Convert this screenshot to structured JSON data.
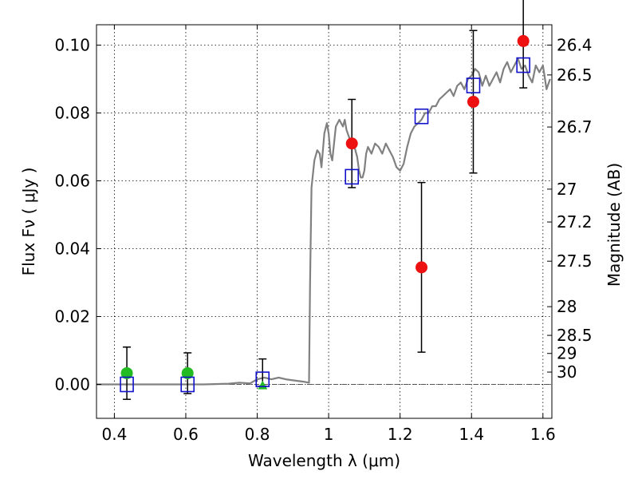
{
  "chart_data": {
    "type": "scatter",
    "xlabel": "Wavelength  λ (μm)",
    "ylabel": "Flux  Fν  ( μJy )",
    "y2label": "Magnitude (AB)",
    "xlim": [
      0.35,
      1.625
    ],
    "ylim": [
      -0.01,
      0.106
    ],
    "grid": true,
    "x_ticks": [
      {
        "value": 0.4,
        "label": "0.4"
      },
      {
        "value": 0.6,
        "label": "0.6"
      },
      {
        "value": 0.8,
        "label": "0.8"
      },
      {
        "value": 1.0,
        "label": "1"
      },
      {
        "value": 1.2,
        "label": "1.2"
      },
      {
        "value": 1.4,
        "label": "1.4"
      },
      {
        "value": 1.6,
        "label": "1.6"
      }
    ],
    "y_ticks": [
      {
        "value": 0.0,
        "label": "0.00"
      },
      {
        "value": 0.02,
        "label": "0.02"
      },
      {
        "value": 0.04,
        "label": "0.04"
      },
      {
        "value": 0.06,
        "label": "0.06"
      },
      {
        "value": 0.08,
        "label": "0.08"
      },
      {
        "value": 0.1,
        "label": "0.10"
      }
    ],
    "mag_ticks": [
      {
        "value": 26.4,
        "label": "26.4"
      },
      {
        "value": 26.5,
        "label": "26.5"
      },
      {
        "value": 26.7,
        "label": "26.7"
      },
      {
        "value": 27.0,
        "label": "27"
      },
      {
        "value": 27.2,
        "label": "27.2"
      },
      {
        "value": 27.5,
        "label": "27.5"
      },
      {
        "value": 28.0,
        "label": "28"
      },
      {
        "value": 28.5,
        "label": "28.5"
      },
      {
        "value": 29.0,
        "label": "29"
      },
      {
        "value": 30.0,
        "label": "30"
      }
    ],
    "colors": {
      "spectrum": "#808080",
      "red": "#ee1111",
      "green": "#22bb22",
      "model": "#1111cc",
      "errorbar": "#000000",
      "zero_line": "#555555"
    },
    "spectrum": [
      [
        0.35,
        0.0
      ],
      [
        0.45,
        0.0
      ],
      [
        0.55,
        0.0
      ],
      [
        0.65,
        0.0
      ],
      [
        0.72,
        0.0002
      ],
      [
        0.75,
        0.0005
      ],
      [
        0.78,
        0.0003
      ],
      [
        0.8,
        0.0015
      ],
      [
        0.82,
        0.002
      ],
      [
        0.84,
        0.0015
      ],
      [
        0.86,
        0.002
      ],
      [
        0.88,
        0.0015
      ],
      [
        0.9,
        0.0012
      ],
      [
        0.93,
        0.0008
      ],
      [
        0.945,
        0.0005
      ],
      [
        0.948,
        0.03
      ],
      [
        0.952,
        0.058
      ],
      [
        0.96,
        0.066
      ],
      [
        0.968,
        0.069
      ],
      [
        0.975,
        0.068
      ],
      [
        0.98,
        0.064
      ],
      [
        0.988,
        0.074
      ],
      [
        0.995,
        0.077
      ],
      [
        1.0,
        0.074
      ],
      [
        1.005,
        0.068
      ],
      [
        1.01,
        0.066
      ],
      [
        1.02,
        0.076
      ],
      [
        1.03,
        0.078
      ],
      [
        1.04,
        0.076
      ],
      [
        1.045,
        0.078
      ],
      [
        1.05,
        0.075
      ],
      [
        1.06,
        0.072
      ],
      [
        1.07,
        0.071
      ],
      [
        1.08,
        0.067
      ],
      [
        1.085,
        0.063
      ],
      [
        1.09,
        0.061
      ],
      [
        1.095,
        0.061
      ],
      [
        1.1,
        0.063
      ],
      [
        1.105,
        0.068
      ],
      [
        1.11,
        0.07
      ],
      [
        1.12,
        0.068
      ],
      [
        1.13,
        0.071
      ],
      [
        1.14,
        0.07
      ],
      [
        1.15,
        0.068
      ],
      [
        1.16,
        0.071
      ],
      [
        1.17,
        0.069
      ],
      [
        1.18,
        0.067
      ],
      [
        1.19,
        0.064
      ],
      [
        1.2,
        0.063
      ],
      [
        1.21,
        0.065
      ],
      [
        1.22,
        0.07
      ],
      [
        1.23,
        0.074
      ],
      [
        1.24,
        0.076
      ],
      [
        1.25,
        0.077
      ],
      [
        1.26,
        0.078
      ],
      [
        1.27,
        0.08
      ],
      [
        1.28,
        0.08
      ],
      [
        1.29,
        0.082
      ],
      [
        1.3,
        0.082
      ],
      [
        1.31,
        0.084
      ],
      [
        1.32,
        0.085
      ],
      [
        1.33,
        0.086
      ],
      [
        1.34,
        0.087
      ],
      [
        1.35,
        0.085
      ],
      [
        1.36,
        0.088
      ],
      [
        1.37,
        0.089
      ],
      [
        1.38,
        0.087
      ],
      [
        1.39,
        0.09
      ],
      [
        1.4,
        0.091
      ],
      [
        1.41,
        0.093
      ],
      [
        1.42,
        0.092
      ],
      [
        1.43,
        0.088
      ],
      [
        1.44,
        0.091
      ],
      [
        1.45,
        0.088
      ],
      [
        1.46,
        0.09
      ],
      [
        1.47,
        0.092
      ],
      [
        1.48,
        0.089
      ],
      [
        1.49,
        0.093
      ],
      [
        1.5,
        0.095
      ],
      [
        1.51,
        0.092
      ],
      [
        1.52,
        0.094
      ],
      [
        1.53,
        0.096
      ],
      [
        1.54,
        0.093
      ],
      [
        1.55,
        0.094
      ],
      [
        1.56,
        0.091
      ],
      [
        1.57,
        0.089
      ],
      [
        1.58,
        0.094
      ],
      [
        1.59,
        0.092
      ],
      [
        1.6,
        0.094
      ],
      [
        1.61,
        0.087
      ],
      [
        1.62,
        0.09
      ]
    ],
    "observed_red": [
      {
        "x": 1.065,
        "y": 0.071,
        "err": 0.013
      },
      {
        "x": 1.26,
        "y": 0.0345,
        "err": 0.025
      },
      {
        "x": 1.405,
        "y": 0.0833,
        "err": 0.021
      },
      {
        "x": 1.545,
        "y": 0.1012,
        "err": 0.0138
      }
    ],
    "observed_green": [
      {
        "x": 0.435,
        "y": 0.0033,
        "err": 0.0077
      },
      {
        "x": 0.605,
        "y": 0.0033,
        "err": 0.006
      }
    ],
    "observed_green_triangle": [
      {
        "x": 0.815,
        "y": -0.0005
      }
    ],
    "model_points": [
      {
        "x": 0.435,
        "y": 0.0
      },
      {
        "x": 0.605,
        "y": 0.0
      },
      {
        "x": 0.815,
        "y": 0.0015
      },
      {
        "x": 1.065,
        "y": 0.0612
      },
      {
        "x": 1.26,
        "y": 0.079
      },
      {
        "x": 1.405,
        "y": 0.0881
      },
      {
        "x": 1.545,
        "y": 0.0941
      }
    ],
    "errorbars_only": [
      {
        "x": 0.815,
        "y": 0.0035,
        "err": 0.004
      }
    ]
  }
}
